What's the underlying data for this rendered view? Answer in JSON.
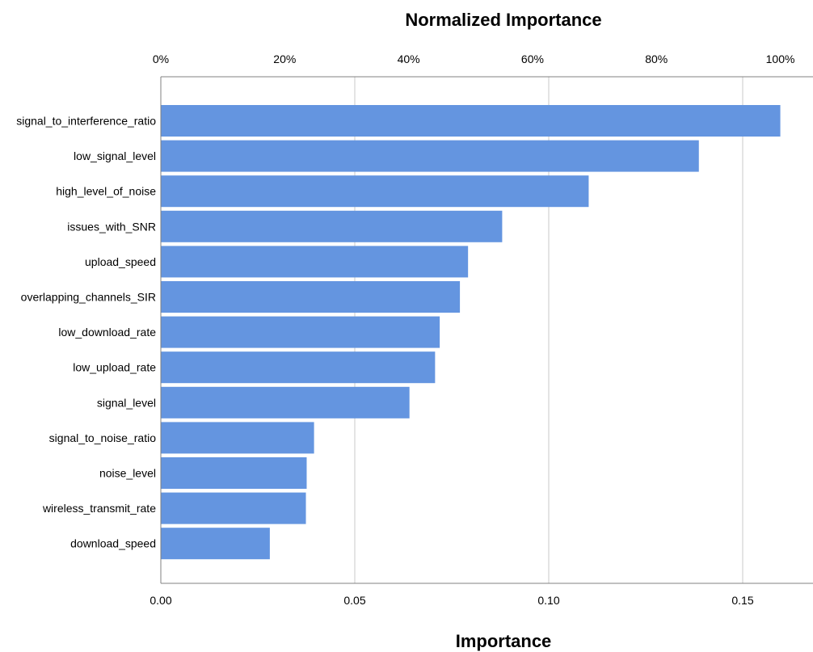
{
  "chart_data": {
    "type": "bar",
    "orientation": "horizontal",
    "title": "Normalized Importance",
    "xlabel": "Importance",
    "ylabel": "",
    "categories": [
      "signal_to_interference_ratio",
      "low_signal_level",
      "high_level_of_noise",
      "issues_with_SNR",
      "upload_speed",
      "overlapping_channels_SIR",
      "low_download_rate",
      "low_upload_rate",
      "signal_level",
      "signal_to_noise_ratio",
      "noise_level",
      "wireless_transmit_rate",
      "download_speed"
    ],
    "values": [
      0.1597,
      0.1387,
      0.1103,
      0.088,
      0.0792,
      0.0771,
      0.0719,
      0.0707,
      0.0641,
      0.0395,
      0.0376,
      0.0374,
      0.0281
    ],
    "xlim": [
      0,
      0.16
    ],
    "x_ticks": [
      0.0,
      0.05,
      0.1,
      0.15
    ],
    "x_tick_labels": [
      "0.00",
      "0.05",
      "0.10",
      "0.15"
    ],
    "top_axis_title": "Normalized Importance",
    "top_tick_labels": [
      "0%",
      "20%",
      "40%",
      "60%",
      "80%",
      "100%"
    ],
    "top_ticks_normalized_pct": [
      0,
      20,
      40,
      60,
      80,
      100
    ],
    "grid": true,
    "bar_color": "#6495E0",
    "grid_color": "#c8c8c8",
    "axis_color": "#808080"
  }
}
